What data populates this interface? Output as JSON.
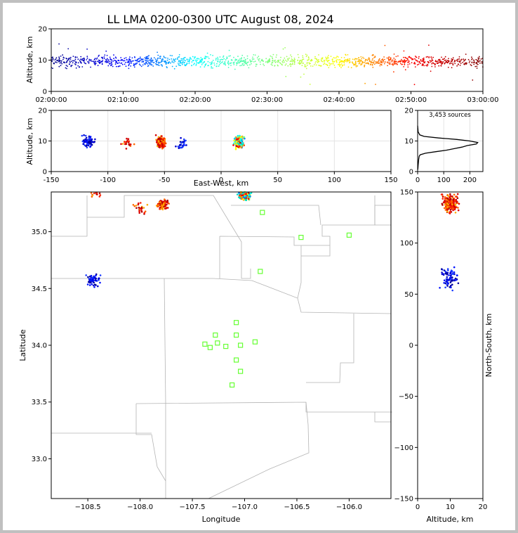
{
  "chart_data": [
    {
      "id": "time_alt",
      "type": "scatter",
      "title": "LL LMA 0200-0300 UTC August 08, 2024",
      "xlabel": "",
      "ylabel": "Altitude, km",
      "x_tick_labels": [
        "02:00:00",
        "02:10:00",
        "02:20:00",
        "02:30:00",
        "02:40:00",
        "02:50:00",
        "03:00:00"
      ],
      "xlim_minutes": [
        0,
        60
      ],
      "ylim": [
        0,
        20
      ],
      "yticks": [
        0,
        10,
        20
      ],
      "color_by": "time",
      "color_scale": [
        "#00008b",
        "#0000ff",
        "#00ffff",
        "#80ff80",
        "#ffff00",
        "#ff0000",
        "#800000"
      ],
      "clusters": [
        {
          "t_minutes": [
            0,
            60
          ],
          "alt_mean": 9.6,
          "alt_spread": 1.8,
          "note": "continuous band of sources across the hour"
        }
      ]
    },
    {
      "id": "ew_alt",
      "type": "scatter",
      "xlabel": "East-West, km",
      "ylabel": "Altitude, km",
      "xlim": [
        -150,
        150
      ],
      "xticks": [
        -150,
        -100,
        -50,
        0,
        50,
        100,
        150
      ],
      "ylim": [
        0,
        20
      ],
      "yticks": [
        0,
        10,
        20
      ],
      "clusters": [
        {
          "x": -118,
          "alt": 10,
          "n": 70,
          "color": "blue"
        },
        {
          "x": -82,
          "alt": 9.5,
          "n": 25,
          "color": "red"
        },
        {
          "x": -53,
          "alt": 9.5,
          "n": 160,
          "color": "red"
        },
        {
          "x": -35,
          "alt": 9,
          "n": 30,
          "color": "blue"
        },
        {
          "x": 16,
          "alt": 9.5,
          "n": 220,
          "color": "cyan-red"
        }
      ]
    },
    {
      "id": "alt_hist",
      "type": "line",
      "annotation": "3,453 sources",
      "xlim": [
        0,
        250
      ],
      "xticks": [
        0,
        100,
        200
      ],
      "ylim": [
        0,
        20
      ],
      "yticks": [
        0,
        10,
        20
      ],
      "profile_alt_km": [
        0.5,
        1,
        2,
        3,
        4,
        5,
        5.5,
        6,
        6.5,
        7,
        7.5,
        8,
        8.5,
        9,
        9.5,
        10,
        10.5,
        11,
        11.5,
        12,
        13,
        14,
        15
      ],
      "profile_count": [
        0,
        1,
        2,
        3,
        4,
        6,
        10,
        30,
        70,
        110,
        140,
        170,
        190,
        225,
        230,
        200,
        150,
        80,
        25,
        8,
        2,
        1,
        0
      ]
    },
    {
      "id": "plan_view",
      "type": "scatter",
      "xlabel": "Longitude",
      "ylabel": "Latitude",
      "xlim": [
        -108.85,
        -105.6
      ],
      "xticks": [
        -108.5,
        -108.0,
        -107.5,
        -107.0,
        -106.5,
        -106.0
      ],
      "ylim": [
        32.65,
        35.35
      ],
      "yticks": [
        33.0,
        33.5,
        34.0,
        34.5,
        35.0
      ],
      "stations": [
        {
          "lon": -107.08,
          "lat": 34.2
        },
        {
          "lon": -107.28,
          "lat": 34.09
        },
        {
          "lon": -107.08,
          "lat": 34.09
        },
        {
          "lon": -107.38,
          "lat": 34.01
        },
        {
          "lon": -107.26,
          "lat": 34.02
        },
        {
          "lon": -107.33,
          "lat": 33.98
        },
        {
          "lon": -107.18,
          "lat": 33.99
        },
        {
          "lon": -107.04,
          "lat": 34.0
        },
        {
          "lon": -106.9,
          "lat": 34.03
        },
        {
          "lon": -107.08,
          "lat": 33.87
        },
        {
          "lon": -107.04,
          "lat": 33.77
        },
        {
          "lon": -107.12,
          "lat": 33.65
        },
        {
          "lon": -106.85,
          "lat": 34.65
        },
        {
          "lon": -106.46,
          "lat": 34.95
        },
        {
          "lon": -106.0,
          "lat": 34.97
        },
        {
          "lon": -106.83,
          "lat": 35.17
        }
      ],
      "clusters": [
        {
          "lon": -108.45,
          "lat": 34.57,
          "n": 60,
          "color": "blue"
        },
        {
          "lon": -108.43,
          "lat": 35.34,
          "n": 25,
          "color": "red"
        },
        {
          "lon": -108.0,
          "lat": 35.21,
          "n": 25,
          "color": "red"
        },
        {
          "lon": -107.78,
          "lat": 35.24,
          "n": 120,
          "color": "red"
        },
        {
          "lon": -107.0,
          "lat": 35.32,
          "n": 200,
          "color": "cyan-red"
        }
      ]
    },
    {
      "id": "alt_ns",
      "type": "scatter",
      "xlabel": "Altitude, km",
      "ylabel": "North-South, km",
      "xlim": [
        0,
        20
      ],
      "xticks": [
        0,
        10,
        20
      ],
      "ylim": [
        -150,
        150
      ],
      "yticks": [
        -150,
        -100,
        -50,
        0,
        50,
        100,
        150
      ],
      "clusters": [
        {
          "alt": 9.5,
          "ns": 65,
          "n": 80,
          "color": "blue"
        },
        {
          "alt": 10,
          "ns": 140,
          "n": 200,
          "color": "red"
        }
      ]
    }
  ]
}
